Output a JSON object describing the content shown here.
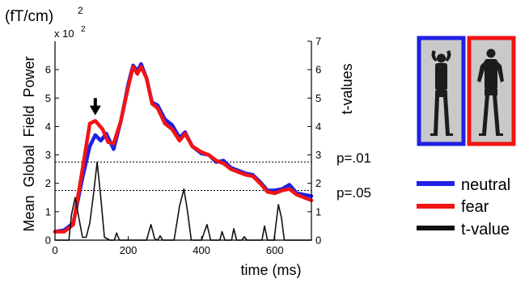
{
  "chart_data": {
    "type": "line",
    "y_unit": "(fT/cm)",
    "y_unit_exponent": "2",
    "y_multiplier": "x 10",
    "y_multiplier_exponent": "2",
    "ylabel": "Mean  Global  Field  Power",
    "y2label": "t-values",
    "xlabel": "time (ms)",
    "xlim": [
      0,
      700
    ],
    "ylim": [
      0,
      7
    ],
    "y2lim": [
      0,
      7
    ],
    "x_ticks": [
      "0",
      "200",
      "400",
      "600"
    ],
    "y_ticks": [
      "0",
      "1",
      "2",
      "3",
      "4",
      "5",
      "6"
    ],
    "y2_ticks": [
      "0",
      "1",
      "2",
      "3",
      "4",
      "5",
      "6",
      "7"
    ],
    "grid": false,
    "legend_position": "right",
    "colors": {
      "neutral": "#1f1fe6",
      "fear": "#f01414",
      "t_value": "#111111"
    },
    "thresholds": [
      {
        "label": "p=.01",
        "value": 2.75
      },
      {
        "label": "p=.05",
        "value": 1.75
      }
    ],
    "arrow_annotation": {
      "x": 110,
      "from_y": 5.0,
      "to_y": 4.45
    },
    "series": [
      {
        "name": "neutral",
        "points": [
          [
            0,
            0.3
          ],
          [
            25,
            0.35
          ],
          [
            50,
            0.6
          ],
          [
            75,
            2.2
          ],
          [
            95,
            3.3
          ],
          [
            110,
            3.7
          ],
          [
            125,
            3.5
          ],
          [
            140,
            3.75
          ],
          [
            160,
            3.2
          ],
          [
            180,
            4.2
          ],
          [
            200,
            5.5
          ],
          [
            213,
            6.15
          ],
          [
            225,
            5.95
          ],
          [
            235,
            6.2
          ],
          [
            250,
            5.7
          ],
          [
            265,
            4.85
          ],
          [
            280,
            4.75
          ],
          [
            300,
            4.25
          ],
          [
            320,
            4.05
          ],
          [
            340,
            3.6
          ],
          [
            355,
            3.8
          ],
          [
            375,
            3.3
          ],
          [
            400,
            3.05
          ],
          [
            420,
            3.0
          ],
          [
            440,
            2.75
          ],
          [
            460,
            2.8
          ],
          [
            480,
            2.55
          ],
          [
            500,
            2.45
          ],
          [
            520,
            2.35
          ],
          [
            540,
            2.3
          ],
          [
            560,
            2.05
          ],
          [
            580,
            1.75
          ],
          [
            600,
            1.75
          ],
          [
            620,
            1.8
          ],
          [
            640,
            1.95
          ],
          [
            660,
            1.65
          ],
          [
            680,
            1.6
          ],
          [
            700,
            1.55
          ]
        ]
      },
      {
        "name": "fear",
        "points": [
          [
            0,
            0.3
          ],
          [
            25,
            0.3
          ],
          [
            50,
            0.55
          ],
          [
            70,
            2.1
          ],
          [
            95,
            4.1
          ],
          [
            110,
            4.2
          ],
          [
            130,
            3.9
          ],
          [
            145,
            3.45
          ],
          [
            160,
            3.4
          ],
          [
            180,
            4.2
          ],
          [
            200,
            5.4
          ],
          [
            213,
            6.1
          ],
          [
            225,
            5.85
          ],
          [
            235,
            6.1
          ],
          [
            250,
            5.7
          ],
          [
            265,
            4.8
          ],
          [
            280,
            4.65
          ],
          [
            300,
            4.1
          ],
          [
            320,
            3.9
          ],
          [
            340,
            3.5
          ],
          [
            355,
            3.75
          ],
          [
            375,
            3.3
          ],
          [
            400,
            3.1
          ],
          [
            420,
            3.0
          ],
          [
            440,
            2.8
          ],
          [
            460,
            2.7
          ],
          [
            480,
            2.5
          ],
          [
            500,
            2.4
          ],
          [
            520,
            2.3
          ],
          [
            540,
            2.25
          ],
          [
            560,
            2.0
          ],
          [
            580,
            1.7
          ],
          [
            600,
            1.65
          ],
          [
            620,
            1.75
          ],
          [
            640,
            1.8
          ],
          [
            660,
            1.6
          ],
          [
            680,
            1.5
          ],
          [
            700,
            1.4
          ]
        ]
      },
      {
        "name": "t-value",
        "points": [
          [
            0,
            0
          ],
          [
            38,
            0
          ],
          [
            45,
            0.9
          ],
          [
            55,
            1.5
          ],
          [
            65,
            0.8
          ],
          [
            75,
            0.1
          ],
          [
            85,
            0.1
          ],
          [
            95,
            0.6
          ],
          [
            105,
            1.6
          ],
          [
            115,
            2.75
          ],
          [
            125,
            1.5
          ],
          [
            135,
            0.1
          ],
          [
            150,
            0
          ],
          [
            162,
            0
          ],
          [
            168,
            0.25
          ],
          [
            176,
            0
          ],
          [
            250,
            0
          ],
          [
            262,
            0.55
          ],
          [
            272,
            0.05
          ],
          [
            280,
            0
          ],
          [
            287,
            0.15
          ],
          [
            294,
            0
          ],
          [
            325,
            0
          ],
          [
            340,
            1.2
          ],
          [
            352,
            1.8
          ],
          [
            362,
            1.0
          ],
          [
            372,
            0
          ],
          [
            400,
            0
          ],
          [
            408,
            0.3
          ],
          [
            415,
            0.55
          ],
          [
            425,
            0
          ],
          [
            450,
            0
          ],
          [
            456,
            0.3
          ],
          [
            464,
            0
          ],
          [
            482,
            0
          ],
          [
            488,
            0.4
          ],
          [
            496,
            0
          ],
          [
            510,
            0
          ],
          [
            517,
            0.12
          ],
          [
            524,
            0
          ],
          [
            565,
            0
          ],
          [
            572,
            0.5
          ],
          [
            580,
            0
          ],
          [
            598,
            0
          ],
          [
            605,
            0.75
          ],
          [
            610,
            1.25
          ],
          [
            618,
            0.8
          ],
          [
            626,
            0
          ],
          [
            700,
            0
          ]
        ]
      }
    ]
  },
  "legend": {
    "items": [
      {
        "label": "neutral",
        "color": "#1f1fe6"
      },
      {
        "label": "fear",
        "color": "#f01414"
      },
      {
        "label": "t-value",
        "color": "#111111"
      }
    ]
  },
  "images": [
    {
      "name": "neutral-body-image",
      "frame_color": "#1f1fe6",
      "icon": "person-arms-raised"
    },
    {
      "name": "fear-body-image",
      "frame_color": "#f01414",
      "icon": "person-standing"
    }
  ]
}
